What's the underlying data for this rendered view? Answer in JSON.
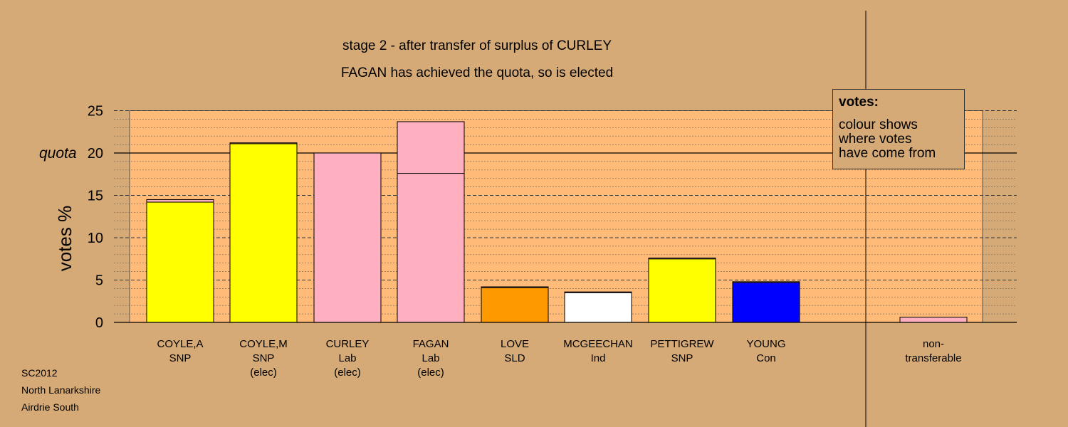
{
  "titles": {
    "line1": "stage 2 - after transfer of surplus of CURLEY",
    "line2": "FAGAN has achieved the quota, so is elected"
  },
  "legend": {
    "title": "votes:",
    "lines": [
      "colour shows",
      "where votes",
      "have come from"
    ]
  },
  "footer": [
    "SC2012",
    "North Lanarkshire",
    "Airdrie South"
  ],
  "chart_data": {
    "type": "bar",
    "stacked": true,
    "ylabel": "votes %",
    "quota_label": "quota",
    "quota": 20,
    "ylim": [
      0,
      25
    ],
    "yticks": [
      0,
      5,
      10,
      15,
      20,
      25
    ],
    "grid": true,
    "legend_position": "top-right",
    "colors": {
      "SNP": "#ffff00",
      "Lab": "#ffb0c0",
      "SLD": "#ff9900",
      "Ind": "#ffffff",
      "Con": "#0000ff",
      "background": "#d5aa77",
      "plot_area": "#ffbb77"
    },
    "bars": [
      {
        "name": "COYLE,A",
        "party": "SNP",
        "elec": "",
        "segments": [
          {
            "value": 14.2,
            "color": "#ffff00"
          },
          {
            "value": 0.3,
            "color": "#ffb0c0"
          }
        ]
      },
      {
        "name": "COYLE,M",
        "party": "SNP",
        "elec": "(elec)",
        "segments": [
          {
            "value": 21.1,
            "color": "#ffff00"
          },
          {
            "value": 0.1,
            "color": "#ffb0c0"
          }
        ]
      },
      {
        "name": "CURLEY",
        "party": "Lab",
        "elec": "(elec)",
        "segments": [
          {
            "value": 20.0,
            "color": "#ffb0c0"
          }
        ]
      },
      {
        "name": "FAGAN",
        "party": "Lab",
        "elec": "(elec)",
        "segments": [
          {
            "value": 17.6,
            "color": "#ffb0c0"
          },
          {
            "value": 6.1,
            "color": "#ffb0c0"
          }
        ]
      },
      {
        "name": "LOVE",
        "party": "SLD",
        "elec": "",
        "segments": [
          {
            "value": 4.1,
            "color": "#ff9900"
          },
          {
            "value": 0.1,
            "color": "#ffb0c0"
          }
        ]
      },
      {
        "name": "MCGEECHAN",
        "party": "Ind",
        "elec": "",
        "segments": [
          {
            "value": 3.5,
            "color": "#ffffff"
          },
          {
            "value": 0.1,
            "color": "#ffb0c0"
          }
        ]
      },
      {
        "name": "PETTIGREW",
        "party": "SNP",
        "elec": "",
        "segments": [
          {
            "value": 7.5,
            "color": "#ffff00"
          },
          {
            "value": 0.1,
            "color": "#ffb0c0"
          }
        ]
      },
      {
        "name": "YOUNG",
        "party": "Con",
        "elec": "",
        "segments": [
          {
            "value": 4.7,
            "color": "#0000ff"
          },
          {
            "value": 0.1,
            "color": "#ffb0c0"
          }
        ]
      }
    ],
    "nontransferable": {
      "label1": "non-",
      "label2": "transferable",
      "value": 0.6,
      "color": "#ffb0c0"
    }
  }
}
